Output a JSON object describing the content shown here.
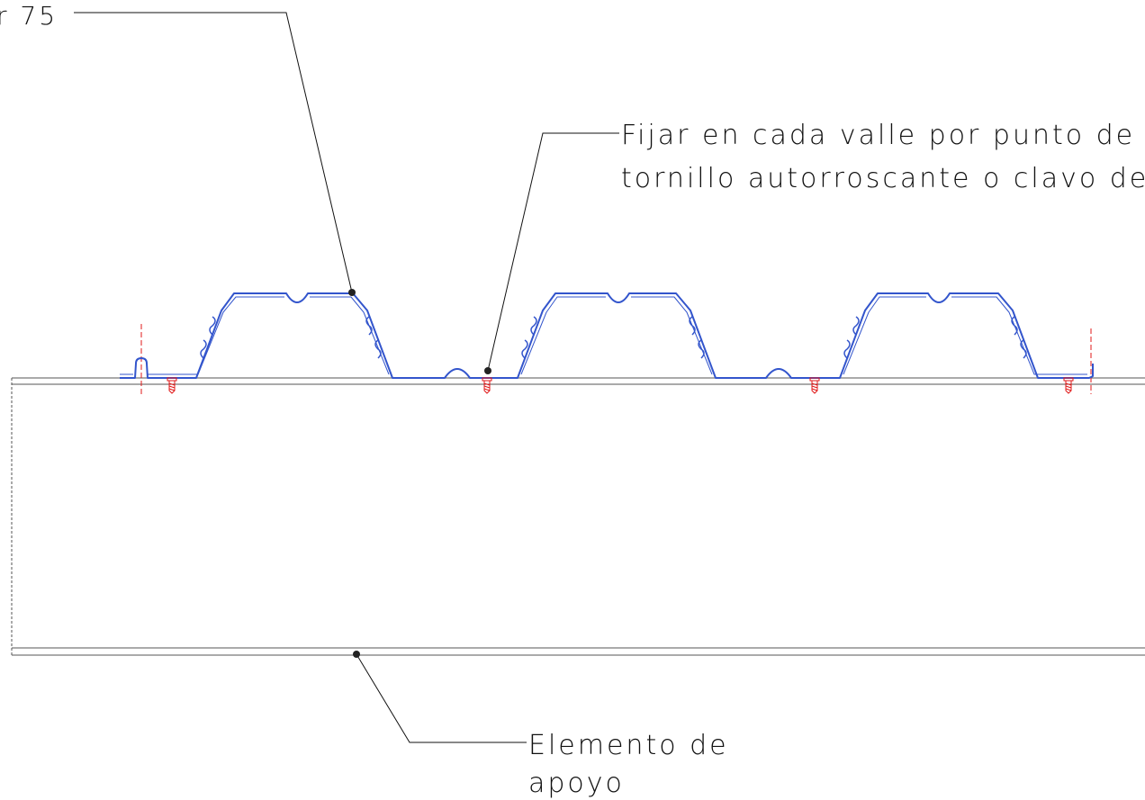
{
  "labels": {
    "top_left": "r 75",
    "fixing_line1": "Fijar en cada valle por punto de s",
    "fixing_line2": "tornillo autorroscante o clavo de d",
    "support_line1": "Elemento de",
    "support_line2": "apoyo"
  },
  "colors": {
    "deck_profile": "#3355cc",
    "screws": "#e01818",
    "lines": "#111111",
    "background": "#ffffff"
  }
}
